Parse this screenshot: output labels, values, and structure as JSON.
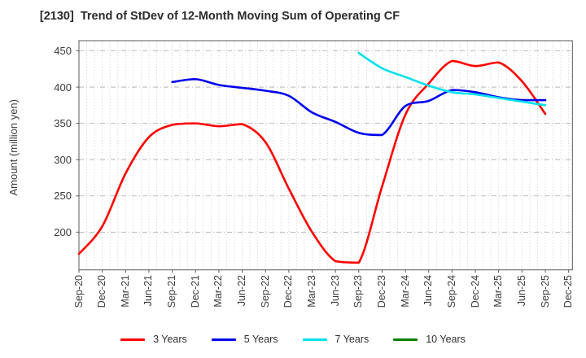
{
  "chart_data": {
    "type": "line",
    "title": "[2130]  Trend of StDev of 12-Month Moving Sum of Operating CF",
    "ylabel": "Amount (million yen)",
    "categories": [
      "Sep-20",
      "Dec-20",
      "Mar-21",
      "Jun-21",
      "Sep-21",
      "Dec-21",
      "Mar-22",
      "Jun-22",
      "Sep-22",
      "Dec-22",
      "Mar-23",
      "Jun-23",
      "Sep-23",
      "Dec-23",
      "Mar-24",
      "Jun-24",
      "Sep-24",
      "Dec-24",
      "Mar-25",
      "Jun-25",
      "Sep-25",
      "Dec-25"
    ],
    "series": [
      {
        "name": "3 Years",
        "color": "#ff0000",
        "values": [
          170,
          208,
          281,
          331,
          348,
          350,
          346,
          349,
          324,
          260,
          200,
          160,
          158,
          263,
          362,
          405,
          436,
          429,
          434,
          408,
          363,
          null
        ]
      },
      {
        "name": "5 Years",
        "color": "#0000ee",
        "values": [
          null,
          null,
          null,
          null,
          407,
          411,
          403,
          399,
          395,
          388,
          365,
          352,
          337,
          334,
          374,
          381,
          396,
          393,
          386,
          382,
          382,
          null
        ]
      },
      {
        "name": "7 Years",
        "color": "#00e0ee",
        "values": [
          null,
          null,
          null,
          null,
          null,
          null,
          null,
          null,
          null,
          null,
          null,
          null,
          447,
          426,
          414,
          402,
          393,
          390,
          385,
          380,
          375,
          null
        ]
      },
      {
        "name": "10 Years",
        "color": "#008000",
        "values": [
          null,
          null,
          null,
          null,
          null,
          null,
          null,
          null,
          null,
          null,
          null,
          null,
          null,
          null,
          null,
          null,
          null,
          null,
          null,
          null,
          null,
          null
        ]
      }
    ],
    "ylim": [
      148,
      464
    ],
    "yticks": [
      200,
      250,
      300,
      350,
      400,
      450
    ],
    "grid": true,
    "minor_x_grid": "monthly",
    "xtick_rotation": 90,
    "legend_position": "bottom"
  }
}
